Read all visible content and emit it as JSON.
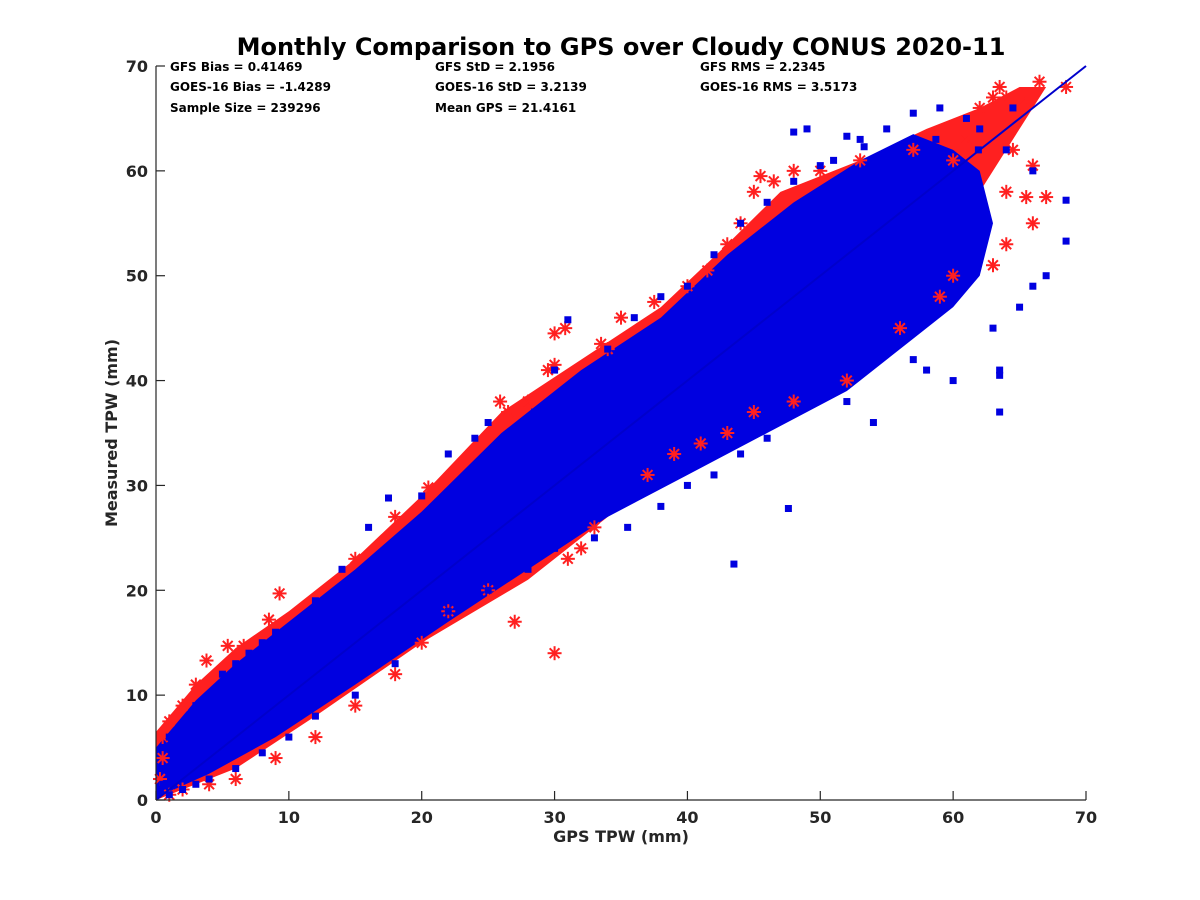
{
  "chart_data": {
    "type": "scatter",
    "title": "Monthly Comparison to GPS over Cloudy CONUS 2020-11",
    "xlabel": "GPS TPW (mm)",
    "ylabel": "Measured TPW (mm)",
    "xlim": [
      0,
      70
    ],
    "ylim": [
      0,
      70
    ],
    "x_ticks": [
      "0",
      "10",
      "20",
      "30",
      "40",
      "50",
      "60",
      "70"
    ],
    "y_ticks": [
      "0",
      "10",
      "20",
      "30",
      "40",
      "50",
      "60",
      "70"
    ],
    "grid": false,
    "legend": "none",
    "stats": [
      "GFS Bias = 0.41469",
      "GOES-16 Bias = -1.4289",
      "Sample Size = 239296",
      "GFS StD = 2.1956",
      "GOES-16 StD = 3.2139",
      "Mean GPS = 21.4161",
      "GFS RMS = 2.2345",
      "GOES-16 RMS = 3.5173"
    ],
    "reference_line": {
      "x": [
        0,
        70
      ],
      "y": [
        0,
        70
      ],
      "color": "#0000cc"
    },
    "series": [
      {
        "marker": "asterisk",
        "color": "#ff2020",
        "points": [
          [
            0.5,
            6
          ],
          [
            1,
            7.5
          ],
          [
            2,
            9
          ],
          [
            3,
            11
          ],
          [
            3.8,
            13.3
          ],
          [
            5.4,
            14.7
          ],
          [
            6.6,
            14.7
          ],
          [
            8.5,
            17.2
          ],
          [
            9.3,
            19.7
          ],
          [
            15,
            23
          ],
          [
            18,
            27
          ],
          [
            20.5,
            29.8
          ],
          [
            25.9,
            38
          ],
          [
            26.5,
            37
          ],
          [
            28,
            38
          ],
          [
            29.5,
            41
          ],
          [
            30,
            41.5
          ],
          [
            30,
            44.5
          ],
          [
            30.8,
            45
          ],
          [
            33.5,
            43.5
          ],
          [
            34,
            43
          ],
          [
            35,
            46
          ],
          [
            37.5,
            47.5
          ],
          [
            40,
            49
          ],
          [
            41.5,
            50.5
          ],
          [
            43,
            53
          ],
          [
            44,
            55
          ],
          [
            45,
            58
          ],
          [
            45.5,
            59.5
          ],
          [
            46.5,
            59
          ],
          [
            48,
            60
          ],
          [
            50,
            60
          ],
          [
            53,
            61
          ],
          [
            57,
            62
          ],
          [
            58.5,
            63.5
          ],
          [
            60,
            61
          ],
          [
            61,
            63
          ],
          [
            62,
            66
          ],
          [
            63,
            67
          ],
          [
            63.5,
            68
          ],
          [
            64,
            67
          ],
          [
            65,
            66.5
          ],
          [
            66.5,
            68.5
          ],
          [
            68.5,
            68
          ],
          [
            64.5,
            62
          ],
          [
            66,
            60.5
          ],
          [
            64,
            58
          ],
          [
            65.5,
            57.5
          ],
          [
            67,
            57.5
          ],
          [
            66,
            55
          ],
          [
            64,
            53
          ],
          [
            63,
            51
          ],
          [
            60,
            50
          ],
          [
            59,
            48
          ],
          [
            56,
            45
          ],
          [
            52,
            40
          ],
          [
            48,
            38
          ],
          [
            45,
            37
          ],
          [
            43,
            35
          ],
          [
            41,
            34
          ],
          [
            39,
            33
          ],
          [
            37,
            31
          ],
          [
            33,
            26
          ],
          [
            32,
            24
          ],
          [
            31,
            23
          ],
          [
            30,
            14
          ],
          [
            27,
            17
          ],
          [
            25,
            20
          ],
          [
            22,
            18
          ],
          [
            20,
            15
          ],
          [
            18,
            12
          ],
          [
            15,
            9
          ],
          [
            12,
            6
          ],
          [
            9,
            4
          ],
          [
            6,
            2
          ],
          [
            4,
            1.5
          ],
          [
            2,
            1
          ],
          [
            1,
            0.5
          ],
          [
            0.3,
            2
          ],
          [
            0.5,
            4
          ]
        ]
      },
      {
        "marker": "square",
        "color": "#0000e0",
        "points": [
          [
            11,
            17
          ],
          [
            12,
            19
          ],
          [
            14,
            22
          ],
          [
            16,
            26
          ],
          [
            17.5,
            28.8
          ],
          [
            20,
            29
          ],
          [
            22,
            33
          ],
          [
            24,
            34.5
          ],
          [
            25,
            36
          ],
          [
            28.5,
            37
          ],
          [
            30,
            41
          ],
          [
            31,
            45.8
          ],
          [
            34,
            43
          ],
          [
            36,
            46
          ],
          [
            38,
            48
          ],
          [
            40,
            49
          ],
          [
            42,
            52
          ],
          [
            44,
            55
          ],
          [
            46,
            57
          ],
          [
            48,
            59
          ],
          [
            50,
            60.5
          ],
          [
            51,
            61
          ],
          [
            53,
            63
          ],
          [
            55,
            64
          ],
          [
            57,
            65.5
          ],
          [
            59,
            66
          ],
          [
            61,
            65
          ],
          [
            62,
            64
          ],
          [
            64,
            62
          ],
          [
            66,
            60
          ],
          [
            68.5,
            57.2
          ],
          [
            68.5,
            53.3
          ],
          [
            67,
            50
          ],
          [
            66,
            49
          ],
          [
            65,
            47
          ],
          [
            63,
            45
          ],
          [
            63.5,
            41
          ],
          [
            63.5,
            40.5
          ],
          [
            63.5,
            37
          ],
          [
            60,
            40
          ],
          [
            58,
            41
          ],
          [
            57,
            42
          ],
          [
            56,
            44
          ],
          [
            54,
            36
          ],
          [
            52,
            38
          ],
          [
            50,
            40
          ],
          [
            48,
            37
          ],
          [
            46,
            34.5
          ],
          [
            44,
            33
          ],
          [
            42,
            31
          ],
          [
            40,
            30
          ],
          [
            38,
            28
          ],
          [
            35.5,
            26
          ],
          [
            33,
            25
          ],
          [
            30,
            24
          ],
          [
            28,
            22
          ],
          [
            25,
            20
          ],
          [
            22,
            18
          ],
          [
            20,
            16
          ],
          [
            18,
            13
          ],
          [
            15,
            10
          ],
          [
            12,
            8
          ],
          [
            10,
            6
          ],
          [
            8,
            4.5
          ],
          [
            6,
            3
          ],
          [
            4,
            2
          ],
          [
            3,
            1.5
          ],
          [
            2,
            1
          ],
          [
            1,
            0.5
          ],
          [
            0.5,
            1.5
          ],
          [
            0.3,
            3
          ],
          [
            0.5,
            5
          ],
          [
            1,
            6
          ],
          [
            2,
            7
          ],
          [
            3,
            9
          ],
          [
            4,
            10
          ],
          [
            5,
            12
          ],
          [
            6,
            13
          ],
          [
            7,
            14
          ],
          [
            8,
            15
          ],
          [
            9,
            16
          ],
          [
            47.6,
            27.8
          ],
          [
            43.5,
            22.5
          ],
          [
            60,
            60
          ],
          [
            58.7,
            63
          ],
          [
            55.3,
            61.7
          ],
          [
            53.3,
            62.3
          ],
          [
            52,
            63.3
          ],
          [
            48,
            63.7
          ],
          [
            49,
            64
          ],
          [
            61.9,
            62
          ],
          [
            64.5,
            66
          ],
          [
            41,
            40
          ],
          [
            35,
            35
          ],
          [
            30,
            30
          ],
          [
            25,
            25
          ],
          [
            20,
            20
          ],
          [
            15,
            15
          ],
          [
            10,
            10
          ],
          [
            45,
            45
          ],
          [
            50,
            50
          ],
          [
            55,
            55
          ]
        ]
      }
    ]
  }
}
